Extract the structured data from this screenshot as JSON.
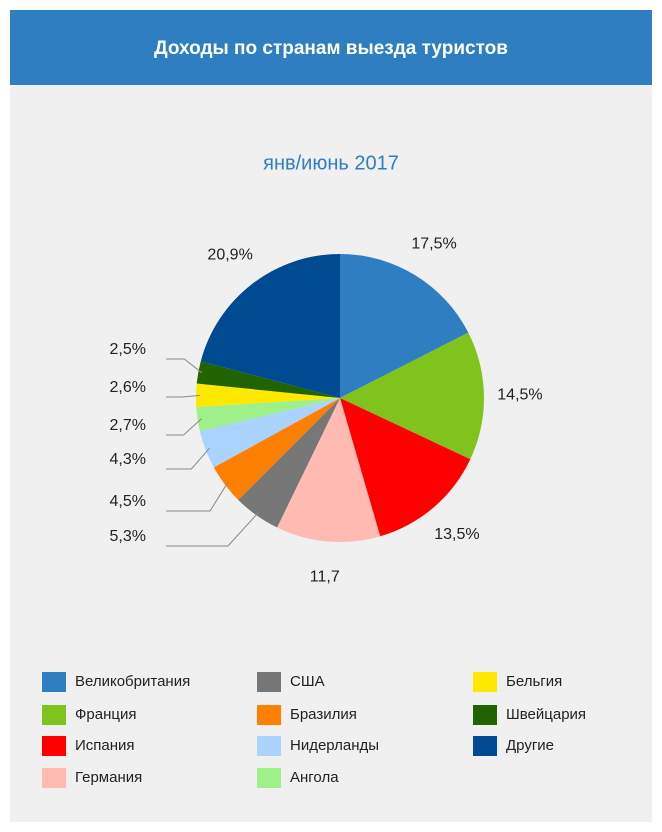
{
  "chart_data": {
    "type": "pie",
    "title": "Доходы по странам выезда туристов",
    "subtitle": "янв/июнь 2017",
    "categories": [
      "Великобритания",
      "Франция",
      "Испания",
      "Германия",
      "США",
      "Бразилия",
      "Нидерланды",
      "Ангола",
      "Бельгия",
      "Швейцария",
      "Другие"
    ],
    "values": [
      17.5,
      14.5,
      13.5,
      11.7,
      5.3,
      4.5,
      4.3,
      2.7,
      2.6,
      2.5,
      20.9
    ],
    "value_labels": [
      "17,5%",
      "14,5%",
      "13,5%",
      "11,7",
      "5,3%",
      "4,5%",
      "4,3%",
      "2,7%",
      "2,6%",
      "2,5%",
      "20,9%"
    ],
    "colors": [
      "#2f7ec2",
      "#7fc31c",
      "#ff0000",
      "#ffbab2",
      "#777777",
      "#ff7f00",
      "#aad4ff",
      "#9ef08a",
      "#ffe800",
      "#1f6400",
      "#004a91"
    ]
  }
}
